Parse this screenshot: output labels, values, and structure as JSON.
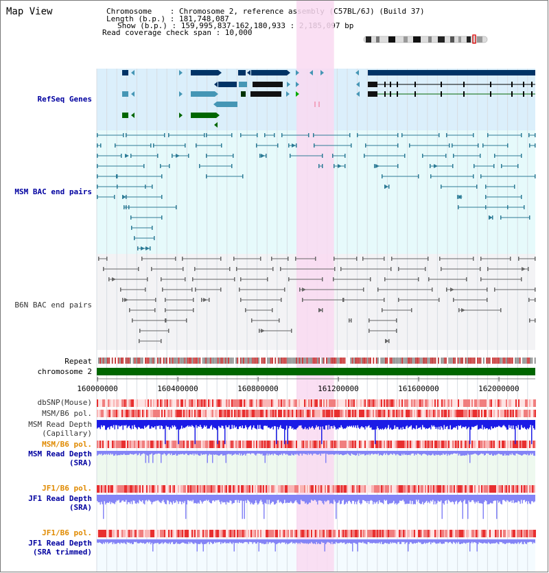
{
  "title": "Map View",
  "info": {
    "chromosome": "Chromosome    : Chromosome 2, reference assembly (C57BL/6J) (Build 37)",
    "length": "Length (b.p.) : 181,748,087",
    "show": "Show (b.p.) : 159,995,837-162,180,933 : 2,185,097 bp",
    "coverage": "Read coverage check span : 10,000"
  },
  "tracks": {
    "refseq": "RefSeq Genes",
    "msm_bac": "MSM BAC end pairs",
    "b6n_bac": "B6N BAC end pairs",
    "repeat": "Repeat",
    "chromosome": "chromosome 2",
    "dbsnp": "dbSNP(Mouse)",
    "msm_b6_pol_1": "MSM/B6 pol.",
    "msm_read_depth_cap_1": "MSM Read Depth",
    "msm_read_depth_cap_2": "(Capillary)",
    "msm_b6_pol_2": "MSM/B6 pol.",
    "msm_read_depth_sra_1": "MSM Read Depth",
    "msm_read_depth_sra_2": "(SRA)",
    "jf1_b6_pol_1": "JF1/B6 pol.",
    "jf1_read_depth_sra_1": "JF1 Read Depth",
    "jf1_read_depth_sra_2": "(SRA)",
    "jf1_b6_pol_2": "JF1/B6 pol.",
    "jf1_read_depth_trim_1": "JF1 Read Depth",
    "jf1_read_depth_trim_2": "(SRA trimmed)"
  },
  "axis": {
    "ticks": [
      {
        "label": "160000000",
        "pos": 160000000
      },
      {
        "label": "160400000",
        "pos": 160400000
      },
      {
        "label": "160800000",
        "pos": 160800000
      },
      {
        "label": "161200000",
        "pos": 161200000
      },
      {
        "label": "161600000",
        "pos": 161600000
      },
      {
        "label": "162000000",
        "pos": 162000000
      }
    ],
    "view_start": 159995837,
    "view_end": 162180933,
    "highlight_start": 160991000,
    "highlight_end": 161178000
  },
  "colors": {
    "refseq_bg": "#dbeffb",
    "msm_bg": "#e6fafb",
    "b6n_bg": "#f3f3f5",
    "highlight": "#f9d9f1",
    "gene_navy": "#003366",
    "gene_teal": "#4596b5",
    "gene_green": "#006600",
    "msm_pair": "#2c7b96",
    "b6n_pair": "#666666",
    "chromosome_bar": "#006600",
    "depth_dark": "#1b1be6",
    "depth_light": "#8484f6",
    "snp_red": "#e33b3b"
  }
}
